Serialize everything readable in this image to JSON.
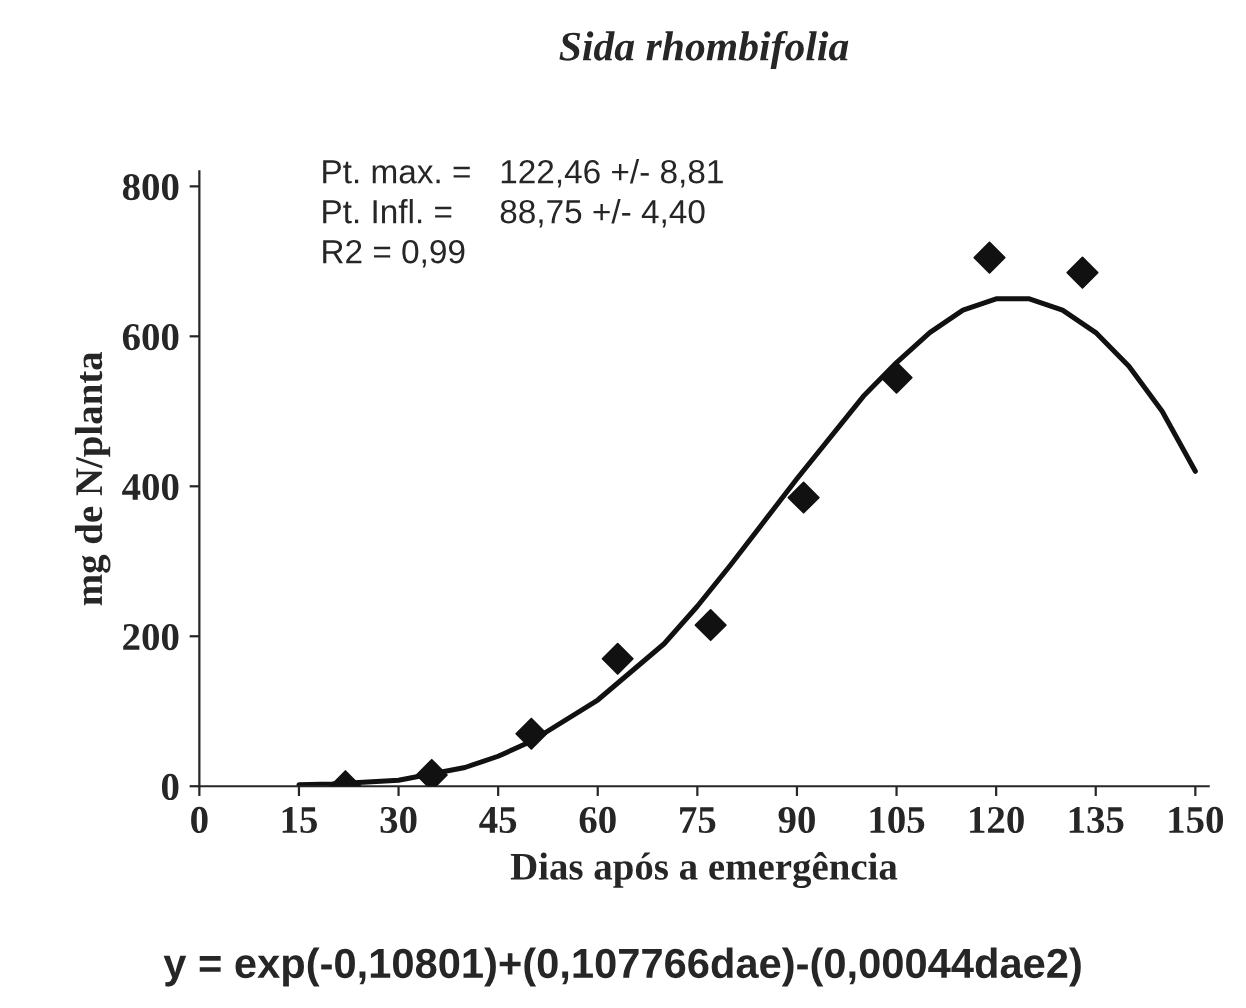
{
  "chart_data": {
    "type": "scatter",
    "title": "Sida rhombifolia",
    "xlabel": "Dias após a emergência",
    "ylabel": "mg de N/planta",
    "xlim": [
      0,
      152
    ],
    "ylim": [
      0,
      820
    ],
    "xticks": [
      0,
      15,
      30,
      45,
      60,
      75,
      90,
      105,
      120,
      135,
      150
    ],
    "yticks": [
      0,
      200,
      400,
      600,
      800
    ],
    "grid": false,
    "series": [
      {
        "marker": "diamond",
        "color": "#111111",
        "x": [
          22,
          35,
          50,
          63,
          77,
          91,
          105,
          119,
          133
        ],
        "values": [
          0,
          15,
          70,
          170,
          215,
          385,
          545,
          705,
          685
        ]
      },
      {
        "type": "line",
        "marker": "none",
        "line_style": "solid",
        "color": "#111111",
        "x": [
          15,
          20,
          30,
          40,
          45,
          50,
          60,
          70,
          75,
          80,
          90,
          100,
          105,
          110,
          115,
          120,
          125,
          130,
          135,
          140,
          145,
          150
        ],
        "values": [
          2,
          3,
          8,
          25,
          40,
          60,
          115,
          190,
          240,
          295,
          410,
          520,
          565,
          605,
          635,
          650,
          650,
          635,
          605,
          560,
          500,
          420
        ]
      }
    ],
    "annotations": [
      "Pt. max. =   122,46 +/- 8,81",
      "Pt. Infl. =     88,75 +/- 4,40",
      "R2 = 0,99",
      "y = exp(-0,10801)+(0,107766dae)-(0,00044dae2)"
    ]
  }
}
